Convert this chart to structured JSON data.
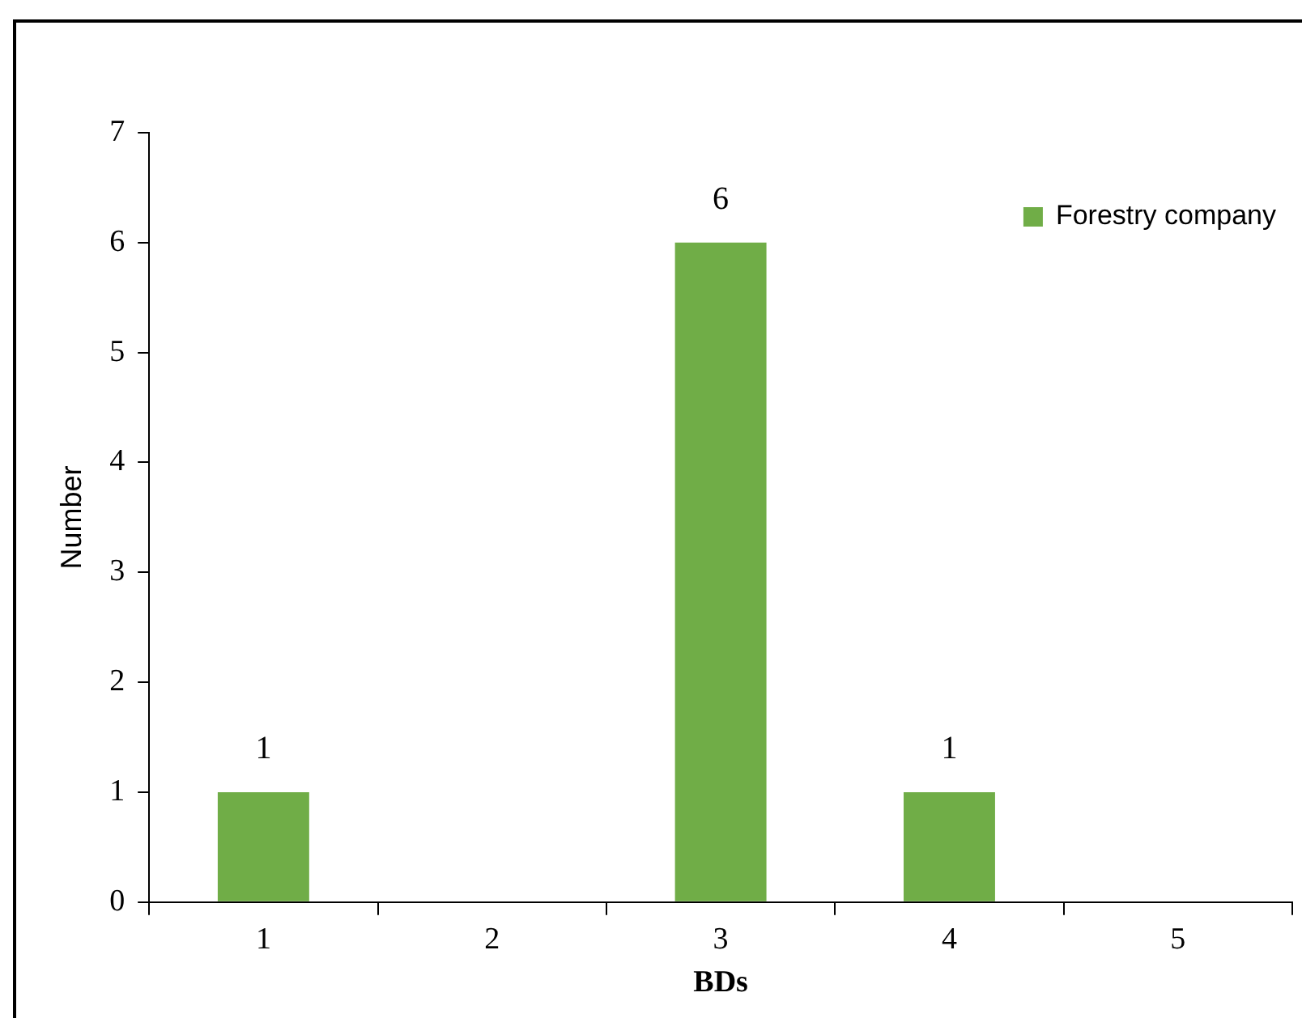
{
  "chart_data": {
    "type": "bar",
    "xlabel": "BDs",
    "ylabel": "Number",
    "categories": [
      "1",
      "2",
      "3",
      "4",
      "5"
    ],
    "series": [
      {
        "name": "Forestry company",
        "color": "#70ad47",
        "values": [
          1,
          0,
          6,
          1,
          0
        ],
        "value_labels": [
          "1",
          null,
          "6",
          "1",
          null
        ]
      }
    ],
    "ylim": [
      0,
      7
    ],
    "yticks": [
      0,
      1,
      2,
      3,
      4,
      5,
      6,
      7
    ],
    "grid": false,
    "legend": "top right"
  }
}
